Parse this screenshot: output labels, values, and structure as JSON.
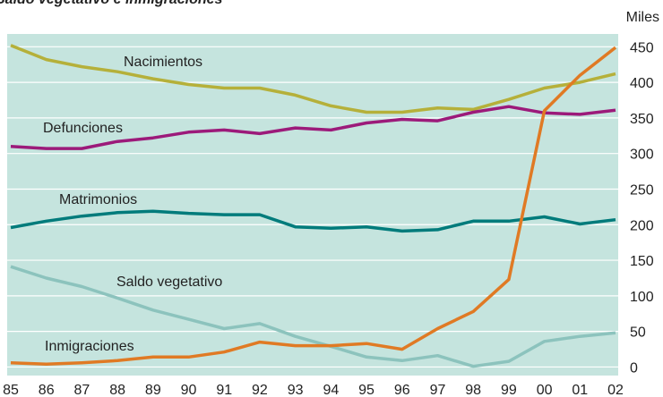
{
  "chart_data": {
    "type": "line",
    "title": "Saldo vegetativo e inmigraciones",
    "unit": "Miles",
    "categories": [
      "85",
      "86",
      "87",
      "88",
      "89",
      "90",
      "91",
      "92",
      "93",
      "94",
      "95",
      "96",
      "97",
      "98",
      "99",
      "00",
      "01",
      "02"
    ],
    "series": [
      {
        "name": "Nacimientos",
        "color": "#b5b03a",
        "values": [
          452,
          432,
          422,
          415,
          405,
          397,
          392,
          392,
          382,
          367,
          358,
          358,
          364,
          362,
          376,
          392,
          400,
          412
        ]
      },
      {
        "name": "Defunciones",
        "color": "#9c1a7a",
        "values": [
          310,
          307,
          307,
          317,
          322,
          330,
          333,
          328,
          336,
          333,
          343,
          348,
          346,
          358,
          366,
          357,
          355,
          361
        ]
      },
      {
        "name": "Matrimonios",
        "color": "#007b7b",
        "values": [
          196,
          205,
          212,
          217,
          219,
          216,
          214,
          214,
          197,
          195,
          197,
          191,
          193,
          205,
          205,
          211,
          201,
          207
        ]
      },
      {
        "name": "Saldo vegetativo",
        "color": "#8cc3bd",
        "values": [
          141,
          125,
          113,
          97,
          80,
          67,
          54,
          61,
          43,
          29,
          14,
          9,
          16,
          1,
          8,
          36,
          43,
          48
        ]
      },
      {
        "name": "Inmigraciones",
        "color": "#e07a24",
        "values": [
          6,
          4,
          6,
          9,
          14,
          14,
          21,
          35,
          30,
          30,
          33,
          25,
          54,
          78,
          123,
          360,
          410,
          449
        ]
      }
    ],
    "ylim": [
      -12,
      468
    ],
    "yticks": [
      0,
      50,
      100,
      150,
      200,
      250,
      300,
      350,
      400,
      450
    ],
    "grid": true,
    "y_axis_side": "right",
    "background": "#c5e4de"
  }
}
